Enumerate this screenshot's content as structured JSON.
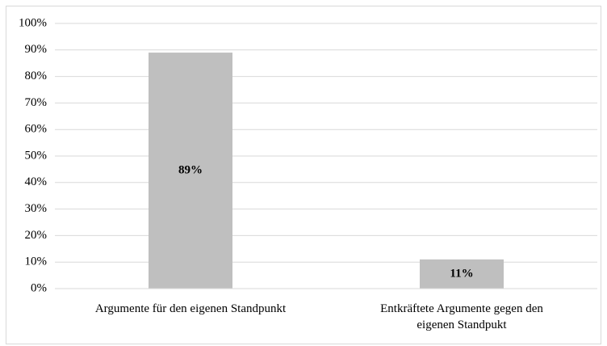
{
  "chart_data": {
    "type": "bar",
    "categories": [
      "Argumente für den eigenen Standpunkt",
      "Entkräftete Argumente gegen den eigenen Standpukt"
    ],
    "values": [
      89,
      11
    ],
    "value_labels": [
      "89%",
      "11%"
    ],
    "color": "#bfbfbf",
    "ylim": [
      0,
      100
    ],
    "yticks": [
      {
        "value": 0,
        "label": "0%"
      },
      {
        "value": 10,
        "label": "10%"
      },
      {
        "value": 20,
        "label": "20%"
      },
      {
        "value": 30,
        "label": "30%"
      },
      {
        "value": 40,
        "label": "40%"
      },
      {
        "value": 50,
        "label": "50%"
      },
      {
        "value": 60,
        "label": "60%"
      },
      {
        "value": 70,
        "label": "70%"
      },
      {
        "value": 80,
        "label": "80%"
      },
      {
        "value": 90,
        "label": "90%"
      },
      {
        "value": 100,
        "label": "100%"
      }
    ],
    "grid": true
  }
}
